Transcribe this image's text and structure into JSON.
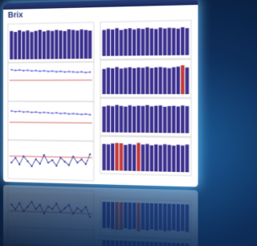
{
  "header": {
    "title": "Brix"
  },
  "panels": [
    {
      "type": "bar",
      "ylim": [
        0,
        100
      ],
      "color": "#3b2f8f",
      "values": [
        88,
        85,
        90,
        86,
        89,
        84,
        87,
        90,
        85,
        88,
        86,
        89,
        87,
        85,
        90,
        88,
        86,
        89,
        87,
        85
      ]
    },
    {
      "type": "line",
      "ylim": [
        0,
        100
      ],
      "color": "#6a6adf",
      "ref": 55,
      "ref_color": "#d04040",
      "values": [
        88,
        86,
        87,
        85,
        86,
        84,
        85,
        83,
        84,
        82,
        83,
        81,
        82,
        80,
        81,
        80,
        79,
        80,
        78,
        79
      ]
    },
    {
      "type": "line",
      "ylim": [
        0,
        100
      ],
      "color": "#6a6adf",
      "ref": 45,
      "ref_color": "#d04040",
      "values": [
        80,
        78,
        79,
        77,
        78,
        76,
        77,
        75,
        76,
        75,
        74,
        75,
        73,
        74,
        72,
        73,
        72,
        71,
        72,
        70
      ]
    },
    {
      "type": "line",
      "ylim": [
        0,
        100
      ],
      "color": "#3b3b9f",
      "ref": 60,
      "ref_color": "#d04040",
      "values": [
        40,
        55,
        35,
        60,
        45,
        30,
        52,
        38,
        65,
        42,
        50,
        33,
        58,
        46,
        36,
        62,
        44,
        54,
        40,
        70
      ]
    },
    {
      "type": "bar",
      "ylim": [
        0,
        100
      ],
      "color": "#3b2f8f",
      "accent_color": "#c23b3b",
      "accent": [],
      "values": [
        85,
        88,
        86,
        90,
        84,
        87,
        89,
        85,
        88,
        86,
        90,
        87,
        85,
        89,
        86,
        88,
        87,
        85,
        89,
        86
      ]
    },
    {
      "type": "bar",
      "ylim": [
        0,
        100
      ],
      "color": "#3b2f8f",
      "accent_color": "#c23b3b",
      "accent": [
        18
      ],
      "values": [
        82,
        86,
        84,
        88,
        83,
        85,
        87,
        84,
        86,
        85,
        88,
        84,
        86,
        87,
        85,
        83,
        86,
        88,
        92,
        85
      ]
    },
    {
      "type": "bar",
      "ylim": [
        0,
        100
      ],
      "color": "#3b2f8f",
      "accent_color": "#c23b3b",
      "accent": [],
      "values": [
        84,
        87,
        85,
        89,
        86,
        84,
        88,
        85,
        87,
        86,
        89,
        85,
        87,
        88,
        84,
        86,
        87,
        85,
        88,
        86
      ]
    },
    {
      "type": "bar",
      "ylim": [
        0,
        100
      ],
      "color": "#3b2f8f",
      "accent_color": "#c23b3b",
      "accent": [
        3,
        4,
        8
      ],
      "values": [
        86,
        85,
        88,
        90,
        89,
        84,
        87,
        85,
        91,
        86,
        88,
        84,
        87,
        85,
        88,
        86,
        84,
        87,
        85,
        88
      ]
    }
  ]
}
